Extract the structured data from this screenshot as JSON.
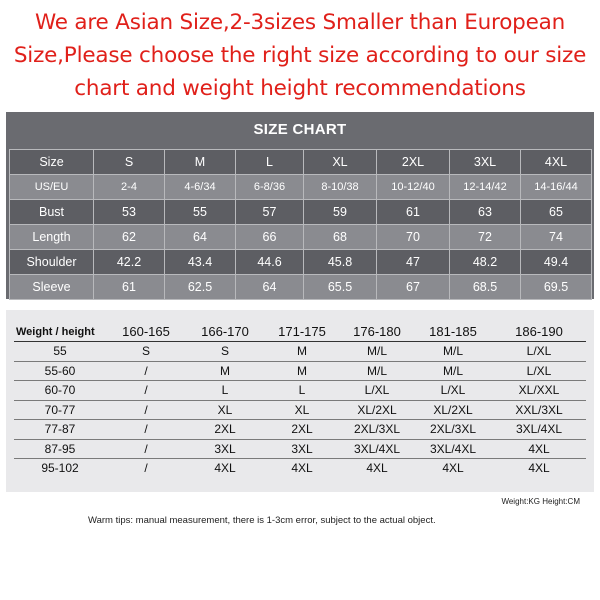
{
  "notice": {
    "lines": [
      "We are Asian Size,2-3sizes Smaller than European",
      "Size,Please choose the right size according to our size",
      "chart and weight height recommendations"
    ]
  },
  "size_chart": {
    "title": "SIZE CHART",
    "rows": [
      [
        "Size",
        "S",
        "M",
        "L",
        "XL",
        "2XL",
        "3XL",
        "4XL"
      ],
      [
        "US/EU",
        "2-4",
        "4-6/34",
        "6-8/36",
        "8-10/38",
        "10-12/40",
        "12-14/42",
        "14-16/44"
      ],
      [
        "Bust",
        "53",
        "55",
        "57",
        "59",
        "61",
        "63",
        "65"
      ],
      [
        "Length",
        "62",
        "64",
        "66",
        "68",
        "70",
        "72",
        "74"
      ],
      [
        "Shoulder",
        "42.2",
        "43.4",
        "44.6",
        "45.8",
        "47",
        "48.2",
        "49.4"
      ],
      [
        "Sleeve",
        "61",
        "62.5",
        "64",
        "65.5",
        "67",
        "68.5",
        "69.5"
      ]
    ]
  },
  "weight_height_chart": {
    "rows": [
      [
        "Weight / height",
        "160-165",
        "166-170",
        "171-175",
        "176-180",
        "181-185",
        "186-190"
      ],
      [
        "55",
        "S",
        "S",
        "M",
        "M/L",
        "M/L",
        "L/XL"
      ],
      [
        "55-60",
        "/",
        "M",
        "M",
        "M/L",
        "M/L",
        "L/XL"
      ],
      [
        "60-70",
        "/",
        "L",
        "L",
        "L/XL",
        "L/XL",
        "XL/XXL"
      ],
      [
        "70-77",
        "/",
        "XL",
        "XL",
        "XL/2XL",
        "XL/2XL",
        "XXL/3XL"
      ],
      [
        "77-87",
        "/",
        "2XL",
        "2XL",
        "2XL/3XL",
        "2XL/3XL",
        "3XL/4XL"
      ],
      [
        "87-95",
        "/",
        "3XL",
        "3XL",
        "3XL/4XL",
        "3XL/4XL",
        "4XL"
      ],
      [
        "95-102",
        "/",
        "4XL",
        "4XL",
        "4XL",
        "4XL",
        "4XL"
      ]
    ]
  },
  "units_note": "Weight:KG  Height:CM",
  "warm_tips": "Warm tips: manual measurement, there is 1-3cm error, subject to the actual object."
}
